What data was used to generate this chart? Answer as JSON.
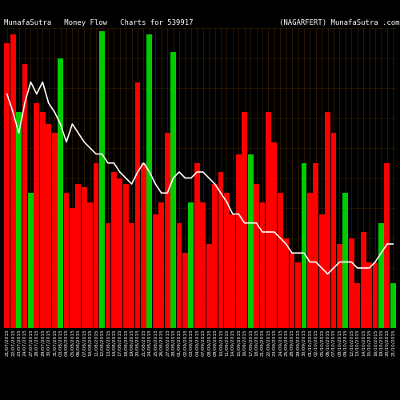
{
  "title": "MunafaSutra   Money Flow   Charts for 539917                    (NAGARFERT) MunafaSutra .com",
  "background_color": "#000000",
  "bar_colors_pattern": [
    "red",
    "red",
    "green",
    "red",
    "green",
    "red",
    "red",
    "red",
    "red",
    "green",
    "red",
    "red",
    "red",
    "red",
    "red",
    "red",
    "green",
    "red",
    "red",
    "red",
    "red",
    "red",
    "red",
    "red",
    "green",
    "red",
    "red",
    "red",
    "green",
    "red",
    "red",
    "green",
    "red",
    "red",
    "red",
    "red",
    "red",
    "red",
    "red",
    "red",
    "red",
    "green",
    "red",
    "red",
    "red",
    "red",
    "red",
    "red",
    "red",
    "red",
    "green",
    "red",
    "red",
    "red",
    "red",
    "red",
    "red",
    "green",
    "red",
    "red",
    "red",
    "red",
    "red",
    "green",
    "red",
    "green"
  ],
  "bar_heights": [
    0.95,
    0.98,
    0.72,
    0.88,
    0.45,
    0.75,
    0.72,
    0.68,
    0.65,
    0.9,
    0.45,
    0.4,
    0.48,
    0.47,
    0.42,
    0.55,
    0.99,
    0.35,
    0.52,
    0.5,
    0.48,
    0.35,
    0.82,
    0.55,
    0.98,
    0.38,
    0.42,
    0.65,
    0.92,
    0.35,
    0.25,
    0.42,
    0.55,
    0.42,
    0.28,
    0.48,
    0.52,
    0.45,
    0.38,
    0.58,
    0.72,
    0.58,
    0.48,
    0.42,
    0.72,
    0.62,
    0.45,
    0.3,
    0.25,
    0.22,
    0.55,
    0.45,
    0.55,
    0.38,
    0.72,
    0.65,
    0.28,
    0.45,
    0.3,
    0.15,
    0.32,
    0.22,
    0.22,
    0.35,
    0.55,
    0.15
  ],
  "line_values": [
    0.78,
    0.72,
    0.65,
    0.75,
    0.82,
    0.78,
    0.82,
    0.75,
    0.72,
    0.68,
    0.62,
    0.68,
    0.65,
    0.62,
    0.6,
    0.58,
    0.58,
    0.55,
    0.55,
    0.52,
    0.5,
    0.48,
    0.52,
    0.55,
    0.52,
    0.48,
    0.45,
    0.45,
    0.5,
    0.52,
    0.5,
    0.5,
    0.52,
    0.52,
    0.5,
    0.48,
    0.45,
    0.42,
    0.38,
    0.38,
    0.35,
    0.35,
    0.35,
    0.32,
    0.32,
    0.32,
    0.3,
    0.28,
    0.25,
    0.25,
    0.25,
    0.22,
    0.22,
    0.2,
    0.18,
    0.2,
    0.22,
    0.22,
    0.22,
    0.2,
    0.2,
    0.2,
    0.22,
    0.25,
    0.28,
    0.28
  ],
  "x_labels": [
    "21/07/2015",
    "22/07/2015",
    "23/07/2015",
    "24/07/2015",
    "27/07/2015",
    "28/07/2015",
    "29/07/2015",
    "30/07/2015",
    "31/07/2015",
    "03/08/2015",
    "04/08/2015",
    "05/08/2015",
    "06/08/2015",
    "07/08/2015",
    "10/08/2015",
    "11/08/2015",
    "12/08/2015",
    "13/08/2015",
    "14/08/2015",
    "17/08/2015",
    "18/08/2015",
    "19/08/2015",
    "20/08/2015",
    "21/08/2015",
    "24/08/2015",
    "25/08/2015",
    "26/08/2015",
    "27/08/2015",
    "28/08/2015",
    "01/09/2015",
    "02/09/2015",
    "03/09/2015",
    "04/09/2015",
    "07/09/2015",
    "08/09/2015",
    "09/09/2015",
    "10/09/2015",
    "11/09/2015",
    "14/09/2015",
    "15/09/2015",
    "16/09/2015",
    "17/09/2015",
    "18/09/2015",
    "21/09/2015",
    "22/09/2015",
    "23/09/2015",
    "24/09/2015",
    "25/09/2015",
    "28/09/2015",
    "29/09/2015",
    "30/09/2015",
    "01/10/2015",
    "02/10/2015",
    "05/10/2015",
    "06/10/2015",
    "07/10/2015",
    "08/10/2015",
    "09/10/2015",
    "12/10/2015",
    "13/10/2015",
    "14/10/2015",
    "15/10/2015",
    "16/10/2015",
    "19/10/2015",
    "20/10/2015",
    "21/10/2015"
  ],
  "line_color": "#ffffff",
  "title_color": "#ffffff",
  "title_fontsize": 6.5,
  "xlabel_fontsize": 4.2,
  "grid_color": "#3a2000",
  "ylim": [
    0,
    1.0
  ],
  "fig_width": 5.0,
  "fig_height": 5.0,
  "dpi": 100
}
